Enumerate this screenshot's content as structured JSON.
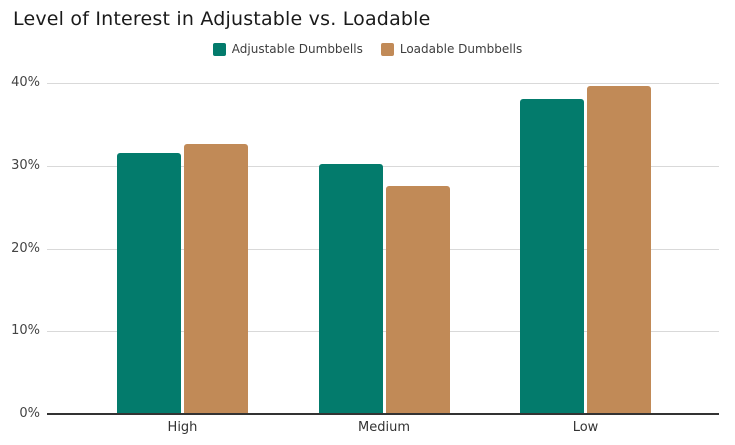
{
  "title": "Level of Interest in Adjustable vs. Loadable",
  "colors": {
    "background": "#ffffff",
    "title_text": "#1a1a1a",
    "legend_text": "#3d3d3d",
    "grid_line": "#d9d9d9",
    "axis_line": "#333333",
    "y_tick_text": "#444444",
    "x_tick_text": "#333333",
    "series_adjustable": "#037b6c",
    "series_loadable": "#c18a57"
  },
  "chart_data": {
    "type": "bar",
    "title": "Level of Interest in Adjustable vs. Loadable",
    "categories": [
      "High",
      "Medium",
      "Low"
    ],
    "series": [
      {
        "name": "Adjustable Dumbbells",
        "color": "#037b6c",
        "values": [
          31.5,
          30.2,
          38.1
        ]
      },
      {
        "name": "Loadable Dumbbells",
        "color": "#c18a57",
        "values": [
          32.6,
          27.5,
          39.6
        ]
      }
    ],
    "xlabel": "",
    "ylabel": "",
    "ylim": [
      0,
      40
    ],
    "ytick_values": [
      0,
      10,
      20,
      30,
      40
    ],
    "ytick_labels": [
      "0%",
      "10%",
      "20%",
      "30%",
      "40%"
    ],
    "grid": "horizontal",
    "legend_position": "top-center",
    "bar_corner_radius_px": 3
  }
}
